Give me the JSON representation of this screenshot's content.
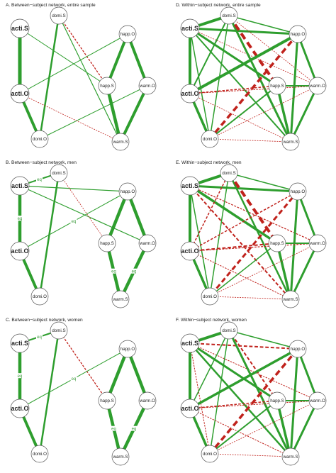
{
  "colors": {
    "positive": "#2e9e2e",
    "negative": "#c0221c"
  },
  "panels": [
    {
      "id": "A",
      "title": "A. Between−subject network, entire sample",
      "nodes": {
        "actiS": "acti.S",
        "domiS": "domi.S",
        "happO": "happ.O",
        "actiO": "acti.O",
        "happS": "happ.S",
        "warmO": "warm.O",
        "domiO": "domi.O",
        "warmS": "warm.S"
      },
      "edges": [
        {
          "from": "actiS",
          "to": "actiO",
          "sign": "pos",
          "weight": 5
        },
        {
          "from": "actiO",
          "to": "domiO",
          "sign": "pos",
          "weight": 4
        },
        {
          "from": "domiS",
          "to": "domiO",
          "sign": "pos",
          "weight": 2.5
        },
        {
          "from": "domiS",
          "to": "warmS",
          "sign": "pos",
          "weight": 1.2
        },
        {
          "from": "domiS",
          "to": "happS",
          "sign": "neg",
          "weight": 1.3
        },
        {
          "from": "actiS",
          "to": "happS",
          "sign": "pos",
          "weight": 1
        },
        {
          "from": "actiO",
          "to": "happO",
          "sign": "pos",
          "weight": 1
        },
        {
          "from": "domiO",
          "to": "warmO",
          "sign": "pos",
          "weight": 1
        },
        {
          "from": "actiO",
          "to": "warmS",
          "sign": "neg",
          "weight": 0.8
        },
        {
          "from": "happO",
          "to": "happS",
          "sign": "pos",
          "weight": 4
        },
        {
          "from": "happO",
          "to": "warmO",
          "sign": "pos",
          "weight": 4
        },
        {
          "from": "happS",
          "to": "warmS",
          "sign": "pos",
          "weight": 4.5
        },
        {
          "from": "warmO",
          "to": "warmS",
          "sign": "pos",
          "weight": 4
        }
      ]
    },
    {
      "id": "B",
      "title": "B. Between−subject network, men",
      "nodes": {
        "actiS": "acti.S",
        "domiS": "domi.S",
        "happO": "happ.O",
        "actiO": "acti.O",
        "happS": "happ.S",
        "warmO": "warm.O",
        "domiO": "domi.O",
        "warmS": "warm.S"
      },
      "edges": [
        {
          "from": "actiS",
          "to": "actiO",
          "sign": "pos",
          "weight": 4.5,
          "label": "eq"
        },
        {
          "from": "actiO",
          "to": "domiO",
          "sign": "pos",
          "weight": 4
        },
        {
          "from": "domiS",
          "to": "domiO",
          "sign": "pos",
          "weight": 2.5
        },
        {
          "from": "actiS",
          "to": "domiS",
          "sign": "pos",
          "weight": 2,
          "label": "eq"
        },
        {
          "from": "actiS",
          "to": "happO",
          "sign": "pos",
          "weight": 1.2
        },
        {
          "from": "actiS",
          "to": "warmO",
          "sign": "pos",
          "weight": 1.2
        },
        {
          "from": "domiS",
          "to": "happS",
          "sign": "neg",
          "weight": 0.8
        },
        {
          "from": "actiO",
          "to": "happO",
          "sign": "pos",
          "weight": 1,
          "label": "eq"
        },
        {
          "from": "happO",
          "to": "happS",
          "sign": "pos",
          "weight": 4.5
        },
        {
          "from": "happO",
          "to": "warmO",
          "sign": "pos",
          "weight": 4.5
        },
        {
          "from": "happS",
          "to": "warmS",
          "sign": "pos",
          "weight": 4.5,
          "label": "eq"
        },
        {
          "from": "warmO",
          "to": "warmS",
          "sign": "pos",
          "weight": 4.5,
          "label": "eq"
        }
      ]
    },
    {
      "id": "C",
      "title": "C. Between−subject network, women",
      "nodes": {
        "actiS": "acti.S",
        "domiS": "domi.S",
        "happO": "happ.O",
        "actiO": "acti.O",
        "happS": "happ.S",
        "warmO": "warm.O",
        "domiO": "domi.O",
        "warmS": "warm.S"
      },
      "edges": [
        {
          "from": "actiS",
          "to": "actiO",
          "sign": "pos",
          "weight": 4.5,
          "label": "eq"
        },
        {
          "from": "actiO",
          "to": "domiO",
          "sign": "pos",
          "weight": 4
        },
        {
          "from": "domiS",
          "to": "domiO",
          "sign": "pos",
          "weight": 2.5
        },
        {
          "from": "actiS",
          "to": "domiS",
          "sign": "pos",
          "weight": 2,
          "label": "eq"
        },
        {
          "from": "domiS",
          "to": "happS",
          "sign": "neg",
          "weight": 1.3
        },
        {
          "from": "actiO",
          "to": "happO",
          "sign": "pos",
          "weight": 1,
          "label": "eq"
        },
        {
          "from": "happO",
          "to": "happS",
          "sign": "pos",
          "weight": 4.5
        },
        {
          "from": "happO",
          "to": "warmO",
          "sign": "pos",
          "weight": 4.5
        },
        {
          "from": "happS",
          "to": "warmS",
          "sign": "pos",
          "weight": 4.5,
          "label": "eq"
        },
        {
          "from": "warmO",
          "to": "warmS",
          "sign": "pos",
          "weight": 4.5,
          "label": "eq"
        }
      ]
    },
    {
      "id": "D",
      "title": "D. Within−subject network, entire sample",
      "nodes": {
        "actiS": "acti.S",
        "domiS": "domi.S",
        "happO": "happ.O",
        "actiO": "acti.O",
        "happS": "happ.S",
        "warmO": "warm.O",
        "domiO": "domi.O",
        "warmS": "warm.S"
      },
      "edges": [
        {
          "from": "actiS",
          "to": "domiS",
          "sign": "pos",
          "weight": 4
        },
        {
          "from": "actiS",
          "to": "happO",
          "sign": "pos",
          "weight": 3
        },
        {
          "from": "actiS",
          "to": "actiO",
          "sign": "pos",
          "weight": 4
        },
        {
          "from": "actiS",
          "to": "happS",
          "sign": "pos",
          "weight": 3
        },
        {
          "from": "actiS",
          "to": "warmS",
          "sign": "pos",
          "weight": 2
        },
        {
          "from": "actiS",
          "to": "domiO",
          "sign": "pos",
          "weight": 1.5
        },
        {
          "from": "actiS",
          "to": "warmO",
          "sign": "neg",
          "weight": 0.8
        },
        {
          "from": "domiS",
          "to": "actiO",
          "sign": "pos",
          "weight": 2
        },
        {
          "from": "domiS",
          "to": "happO",
          "sign": "pos",
          "weight": 1.5
        },
        {
          "from": "domiS",
          "to": "domiO",
          "sign": "pos",
          "weight": 1.5
        },
        {
          "from": "domiS",
          "to": "warmS",
          "sign": "pos",
          "weight": 3
        },
        {
          "from": "domiS",
          "to": "happS",
          "sign": "neg",
          "weight": 4
        },
        {
          "from": "domiS",
          "to": "warmO",
          "sign": "neg",
          "weight": 0.8
        },
        {
          "from": "happO",
          "to": "actiO",
          "sign": "pos",
          "weight": 4
        },
        {
          "from": "happO",
          "to": "warmO",
          "sign": "pos",
          "weight": 3
        },
        {
          "from": "happO",
          "to": "warmS",
          "sign": "pos",
          "weight": 3
        },
        {
          "from": "happO",
          "to": "domiO",
          "sign": "neg",
          "weight": 3.5
        },
        {
          "from": "actiO",
          "to": "domiO",
          "sign": "pos",
          "weight": 3.5
        },
        {
          "from": "actiO",
          "to": "happS",
          "sign": "neg",
          "weight": 1.5
        },
        {
          "from": "actiO",
          "to": "warmO",
          "sign": "neg",
          "weight": 1
        },
        {
          "from": "actiO",
          "to": "warmS",
          "sign": "neg",
          "weight": 0.8
        },
        {
          "from": "happS",
          "to": "warmO",
          "sign": "pos",
          "weight": 2
        },
        {
          "from": "happS",
          "to": "warmS",
          "sign": "pos",
          "weight": 3.5
        },
        {
          "from": "happS",
          "to": "domiO",
          "sign": "pos",
          "weight": 2
        },
        {
          "from": "warmO",
          "to": "warmS",
          "sign": "pos",
          "weight": 3
        },
        {
          "from": "warmO",
          "to": "domiO",
          "sign": "neg",
          "weight": 0.8
        },
        {
          "from": "domiO",
          "to": "warmS",
          "sign": "neg",
          "weight": 0.8
        }
      ]
    },
    {
      "id": "E",
      "title": "E. Within−subject network, men",
      "nodes": {
        "actiS": "acti.S",
        "domiS": "domi.S",
        "happO": "happ.O",
        "actiO": "acti.O",
        "happS": "happ.S",
        "warmO": "warm.O",
        "domiO": "domi.O",
        "warmS": "warm.S"
      },
      "edges": [
        {
          "from": "actiS",
          "to": "domiS",
          "sign": "pos",
          "weight": 4
        },
        {
          "from": "actiS",
          "to": "happO",
          "sign": "pos",
          "weight": 3
        },
        {
          "from": "actiS",
          "to": "actiO",
          "sign": "pos",
          "weight": 4
        },
        {
          "from": "actiS",
          "to": "happS",
          "sign": "pos",
          "weight": 3.5
        },
        {
          "from": "actiS",
          "to": "warmS",
          "sign": "neg",
          "weight": 2
        },
        {
          "from": "actiS",
          "to": "domiO",
          "sign": "pos",
          "weight": 1.5
        },
        {
          "from": "actiS",
          "to": "warmO",
          "sign": "neg",
          "weight": 1.2
        },
        {
          "from": "domiS",
          "to": "actiO",
          "sign": "neg",
          "weight": 1.5
        },
        {
          "from": "domiS",
          "to": "happO",
          "sign": "pos",
          "weight": 1.5
        },
        {
          "from": "domiS",
          "to": "domiO",
          "sign": "pos",
          "weight": 1.5
        },
        {
          "from": "domiS",
          "to": "warmS",
          "sign": "pos",
          "weight": 2.5
        },
        {
          "from": "domiS",
          "to": "happS",
          "sign": "neg",
          "weight": 4
        },
        {
          "from": "happO",
          "to": "actiO",
          "sign": "neg",
          "weight": 1.5
        },
        {
          "from": "happO",
          "to": "warmO",
          "sign": "pos",
          "weight": 3
        },
        {
          "from": "happO",
          "to": "warmS",
          "sign": "pos",
          "weight": 3
        },
        {
          "from": "happO",
          "to": "domiO",
          "sign": "neg",
          "weight": 3
        },
        {
          "from": "actiO",
          "to": "domiO",
          "sign": "pos",
          "weight": 3.5
        },
        {
          "from": "actiO",
          "to": "happS",
          "sign": "neg",
          "weight": 2
        },
        {
          "from": "actiO",
          "to": "warmO",
          "sign": "neg",
          "weight": 1.2
        },
        {
          "from": "actiO",
          "to": "warmS",
          "sign": "neg",
          "weight": 1
        },
        {
          "from": "happS",
          "to": "warmO",
          "sign": "pos",
          "weight": 2
        },
        {
          "from": "happS",
          "to": "warmS",
          "sign": "pos",
          "weight": 3.5
        },
        {
          "from": "happS",
          "to": "domiO",
          "sign": "pos",
          "weight": 1.5
        },
        {
          "from": "warmO",
          "to": "warmS",
          "sign": "pos",
          "weight": 3
        },
        {
          "from": "warmO",
          "to": "domiO",
          "sign": "neg",
          "weight": 0.8
        },
        {
          "from": "domiO",
          "to": "warmS",
          "sign": "neg",
          "weight": 0.8
        }
      ]
    },
    {
      "id": "F",
      "title": "F. Within−subject network, women",
      "nodes": {
        "actiS": "acti.S",
        "domiS": "domi.S",
        "happO": "happ.O",
        "actiO": "acti.O",
        "happS": "happ.S",
        "warmO": "warm.O",
        "domiO": "domi.O",
        "warmS": "warm.S"
      },
      "edges": [
        {
          "from": "actiS",
          "to": "domiS",
          "sign": "pos",
          "weight": 4
        },
        {
          "from": "actiS",
          "to": "happO",
          "sign": "neg",
          "weight": 2
        },
        {
          "from": "actiS",
          "to": "actiO",
          "sign": "pos",
          "weight": 4
        },
        {
          "from": "actiS",
          "to": "happS",
          "sign": "pos",
          "weight": 3
        },
        {
          "from": "actiS",
          "to": "warmS",
          "sign": "pos",
          "weight": 2.5
        },
        {
          "from": "actiS",
          "to": "domiO",
          "sign": "neg",
          "weight": 1
        },
        {
          "from": "actiS",
          "to": "warmO",
          "sign": "neg",
          "weight": 1
        },
        {
          "from": "domiS",
          "to": "actiO",
          "sign": "pos",
          "weight": 1.5
        },
        {
          "from": "domiS",
          "to": "happO",
          "sign": "pos",
          "weight": 1.5
        },
        {
          "from": "domiS",
          "to": "domiO",
          "sign": "pos",
          "weight": 1.5
        },
        {
          "from": "domiS",
          "to": "warmS",
          "sign": "pos",
          "weight": 3
        },
        {
          "from": "domiS",
          "to": "happS",
          "sign": "neg",
          "weight": 2
        },
        {
          "from": "happO",
          "to": "actiO",
          "sign": "pos",
          "weight": 3.5
        },
        {
          "from": "happO",
          "to": "warmO",
          "sign": "pos",
          "weight": 3
        },
        {
          "from": "happO",
          "to": "warmS",
          "sign": "pos",
          "weight": 3
        },
        {
          "from": "happO",
          "to": "domiO",
          "sign": "neg",
          "weight": 3.5
        },
        {
          "from": "actiO",
          "to": "domiO",
          "sign": "pos",
          "weight": 3.5
        },
        {
          "from": "actiO",
          "to": "happS",
          "sign": "neg",
          "weight": 1.5
        },
        {
          "from": "actiO",
          "to": "warmO",
          "sign": "neg",
          "weight": 1
        },
        {
          "from": "actiO",
          "to": "warmS",
          "sign": "neg",
          "weight": 1
        },
        {
          "from": "happS",
          "to": "warmO",
          "sign": "pos",
          "weight": 2
        },
        {
          "from": "happS",
          "to": "warmS",
          "sign": "pos",
          "weight": 3.5
        },
        {
          "from": "happS",
          "to": "domiO",
          "sign": "pos",
          "weight": 2
        },
        {
          "from": "warmO",
          "to": "warmS",
          "sign": "pos",
          "weight": 3
        },
        {
          "from": "warmO",
          "to": "domiO",
          "sign": "neg",
          "weight": 0.8
        },
        {
          "from": "domiO",
          "to": "warmS",
          "sign": "neg",
          "weight": 0.8
        }
      ]
    }
  ]
}
